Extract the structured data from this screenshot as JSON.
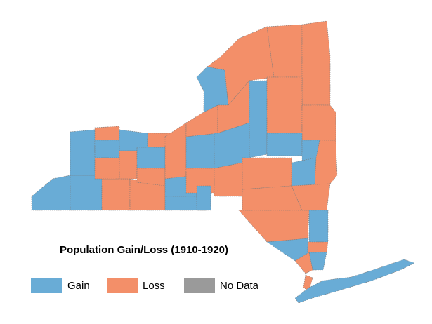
{
  "title": "Population Gain/Loss (1910-1920)",
  "legend": [
    {
      "label": "Gain",
      "color": "#69acd6"
    },
    {
      "label": "Loss",
      "color": "#f38f69"
    },
    {
      "label": "No Data",
      "color": "#9a9a9a"
    }
  ]
}
